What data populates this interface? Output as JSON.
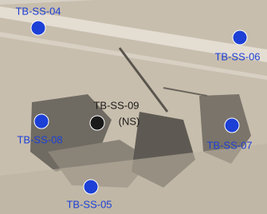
{
  "map": {
    "points": [
      {
        "label": "TB-SS-04",
        "color": "#1c3fd6"
      },
      {
        "label": "TB-SS-06",
        "color": "#1c3fd6"
      },
      {
        "label": "TB-SS-08",
        "color": "#1c3fd6"
      },
      {
        "label": "TB-SS-09",
        "note": "(NS)",
        "color": "#1a1a1a"
      },
      {
        "label": "TB-SS-07",
        "color": "#1c3fd6"
      },
      {
        "label": "TB-SS-05",
        "color": "#1c3fd6"
      }
    ]
  }
}
